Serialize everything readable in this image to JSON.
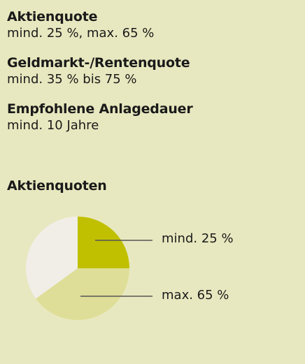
{
  "facts": [
    {
      "heading": "Aktienquote",
      "value": "mind. 25 %, max. 65 %"
    },
    {
      "heading": "Geldmarkt-/Rentenquote",
      "value": "mind. 35 % bis 75 %"
    },
    {
      "heading": "Empfohlene Anlagedauer",
      "value": "mind. 10 Jahre"
    }
  ],
  "chart_heading": "Aktienquoten",
  "chart_data": {
    "type": "pie",
    "title": "Aktienquoten",
    "slices": [
      {
        "label": "mind. 25 %",
        "value": 25,
        "color": "#c0c000"
      },
      {
        "label": "",
        "value": 40,
        "color": "#dede98"
      },
      {
        "label": "",
        "value": 35,
        "color": "#f0eee6"
      }
    ],
    "annotations": [
      {
        "text": "mind. 25 %",
        "points_to_slice": 0
      },
      {
        "text": "max. 65 %",
        "points_to_slice": 1
      }
    ]
  },
  "colors": {
    "background": "#e8e8c0",
    "text": "#1a1a1a",
    "leader_line": "#555555"
  }
}
